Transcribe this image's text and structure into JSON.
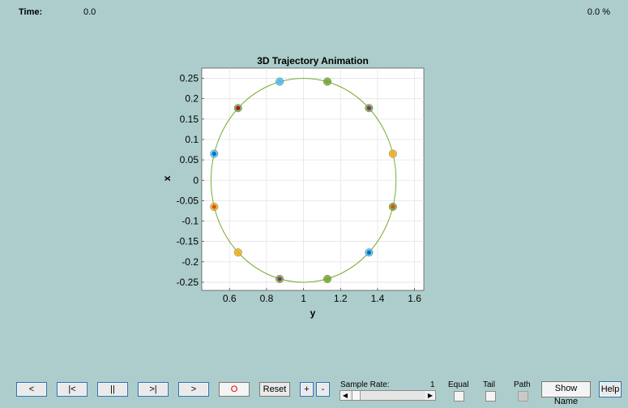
{
  "status": {
    "time_label": "Time:",
    "time_value": "0.0",
    "percent_value": "0.0 %"
  },
  "chart_data": {
    "type": "scatter",
    "title": "3D Trajectory Animation",
    "xlabel": "y",
    "ylabel": "x",
    "xlim": [
      0.45,
      1.65
    ],
    "ylim": [
      -0.27,
      0.275
    ],
    "xticks": [
      0.6,
      0.8,
      1,
      1.2,
      1.4,
      1.6
    ],
    "xtick_labels": [
      "0.6",
      "0.8",
      "1",
      "1.2",
      "1.4",
      "1.6"
    ],
    "yticks": [
      0.25,
      0.2,
      0.15,
      0.1,
      0.05,
      0,
      -0.05,
      -0.1,
      -0.15,
      -0.2,
      -0.25
    ],
    "ytick_labels": [
      "0.25",
      "0.2",
      "0.15",
      "0.1",
      "0.05",
      "0",
      "-0.05",
      "-0.1",
      "-0.15",
      "-0.2",
      "-0.25"
    ],
    "grid": true,
    "trajectory": {
      "center": [
        1.0,
        0.0
      ],
      "radius_x": 0.5,
      "radius_y": 0.25,
      "color": "#77ac30"
    },
    "points": [
      {
        "x": 0.871,
        "y": 0.242,
        "color": "#4dbeee",
        "dot": "#4dbeee"
      },
      {
        "x": 1.129,
        "y": 0.242,
        "color": "#77ac30",
        "dot": "#77ac30"
      },
      {
        "x": 0.646,
        "y": 0.177,
        "color": "#77ac30",
        "dot": "#a2142f"
      },
      {
        "x": 1.354,
        "y": 0.177,
        "color": "#77ac30",
        "dot": "#7e2f8e"
      },
      {
        "x": 0.517,
        "y": 0.065,
        "color": "#4dbeee",
        "dot": "#0072bd"
      },
      {
        "x": 1.483,
        "y": 0.065,
        "color": "#edb120",
        "dot": "#edb120"
      },
      {
        "x": 0.517,
        "y": -0.065,
        "color": "#edb120",
        "dot": "#d95319"
      },
      {
        "x": 1.483,
        "y": -0.065,
        "color": "#77ac30",
        "dot": "#d95319"
      },
      {
        "x": 0.646,
        "y": -0.177,
        "color": "#edb120",
        "dot": "#edb120"
      },
      {
        "x": 1.354,
        "y": -0.177,
        "color": "#4dbeee",
        "dot": "#0072bd"
      },
      {
        "x": 0.871,
        "y": -0.242,
        "color": "#77ac30",
        "dot": "#7e2f8e"
      },
      {
        "x": 1.129,
        "y": -0.242,
        "color": "#77ac30",
        "dot": "#77ac30"
      }
    ]
  },
  "controls": {
    "prev_step": "<",
    "first": "|<",
    "pause": "||",
    "last": ">|",
    "next_step": ">",
    "record": "O",
    "reset": "Reset",
    "zoom_in": "+",
    "zoom_out": "-",
    "sample_rate_label": "Sample Rate:",
    "sample_rate_value": "1",
    "slider_left": "◀",
    "slider_right": "▶",
    "equal_label": "Equal",
    "tail_label": "Tail",
    "path_label": "Path",
    "show_name": "Show Name",
    "help": "Help",
    "record_color": "#e00000",
    "show_name_checked": false,
    "equal_checked": false,
    "tail_checked": false,
    "path_enabled": false
  }
}
